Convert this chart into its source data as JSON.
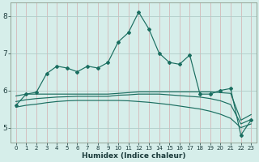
{
  "xlabel": "Humidex (Indice chaleur)",
  "xlim": [
    -0.5,
    23.5
  ],
  "ylim": [
    4.6,
    8.35
  ],
  "bg_color": "#d6eeea",
  "grid_color_major": "#c0d8d4",
  "grid_color_minor": "#e0f0ec",
  "line_color": "#1a6e60",
  "series": {
    "main": [
      5.6,
      5.9,
      5.95,
      6.45,
      6.65,
      6.6,
      6.5,
      6.65,
      6.6,
      6.75,
      7.3,
      7.55,
      8.1,
      7.65,
      7.0,
      6.75,
      6.7,
      6.95,
      5.9,
      5.9,
      6.0,
      6.05,
      4.8,
      5.2
    ],
    "line2": [
      5.85,
      5.9,
      5.9,
      5.9,
      5.9,
      5.9,
      5.9,
      5.9,
      5.9,
      5.9,
      5.92,
      5.94,
      5.96,
      5.96,
      5.96,
      5.96,
      5.96,
      5.96,
      5.96,
      5.96,
      5.94,
      5.92,
      5.2,
      5.35
    ],
    "line3": [
      5.7,
      5.75,
      5.78,
      5.8,
      5.82,
      5.83,
      5.84,
      5.84,
      5.84,
      5.84,
      5.87,
      5.88,
      5.9,
      5.9,
      5.9,
      5.88,
      5.86,
      5.84,
      5.82,
      5.78,
      5.72,
      5.62,
      5.1,
      5.22
    ],
    "line4": [
      5.55,
      5.6,
      5.63,
      5.67,
      5.7,
      5.72,
      5.73,
      5.73,
      5.73,
      5.73,
      5.73,
      5.72,
      5.7,
      5.68,
      5.65,
      5.62,
      5.58,
      5.54,
      5.5,
      5.44,
      5.36,
      5.25,
      5.0,
      5.1
    ]
  },
  "x": [
    0,
    1,
    2,
    3,
    4,
    5,
    6,
    7,
    8,
    9,
    10,
    11,
    12,
    13,
    14,
    15,
    16,
    17,
    18,
    19,
    20,
    21,
    22,
    23
  ]
}
